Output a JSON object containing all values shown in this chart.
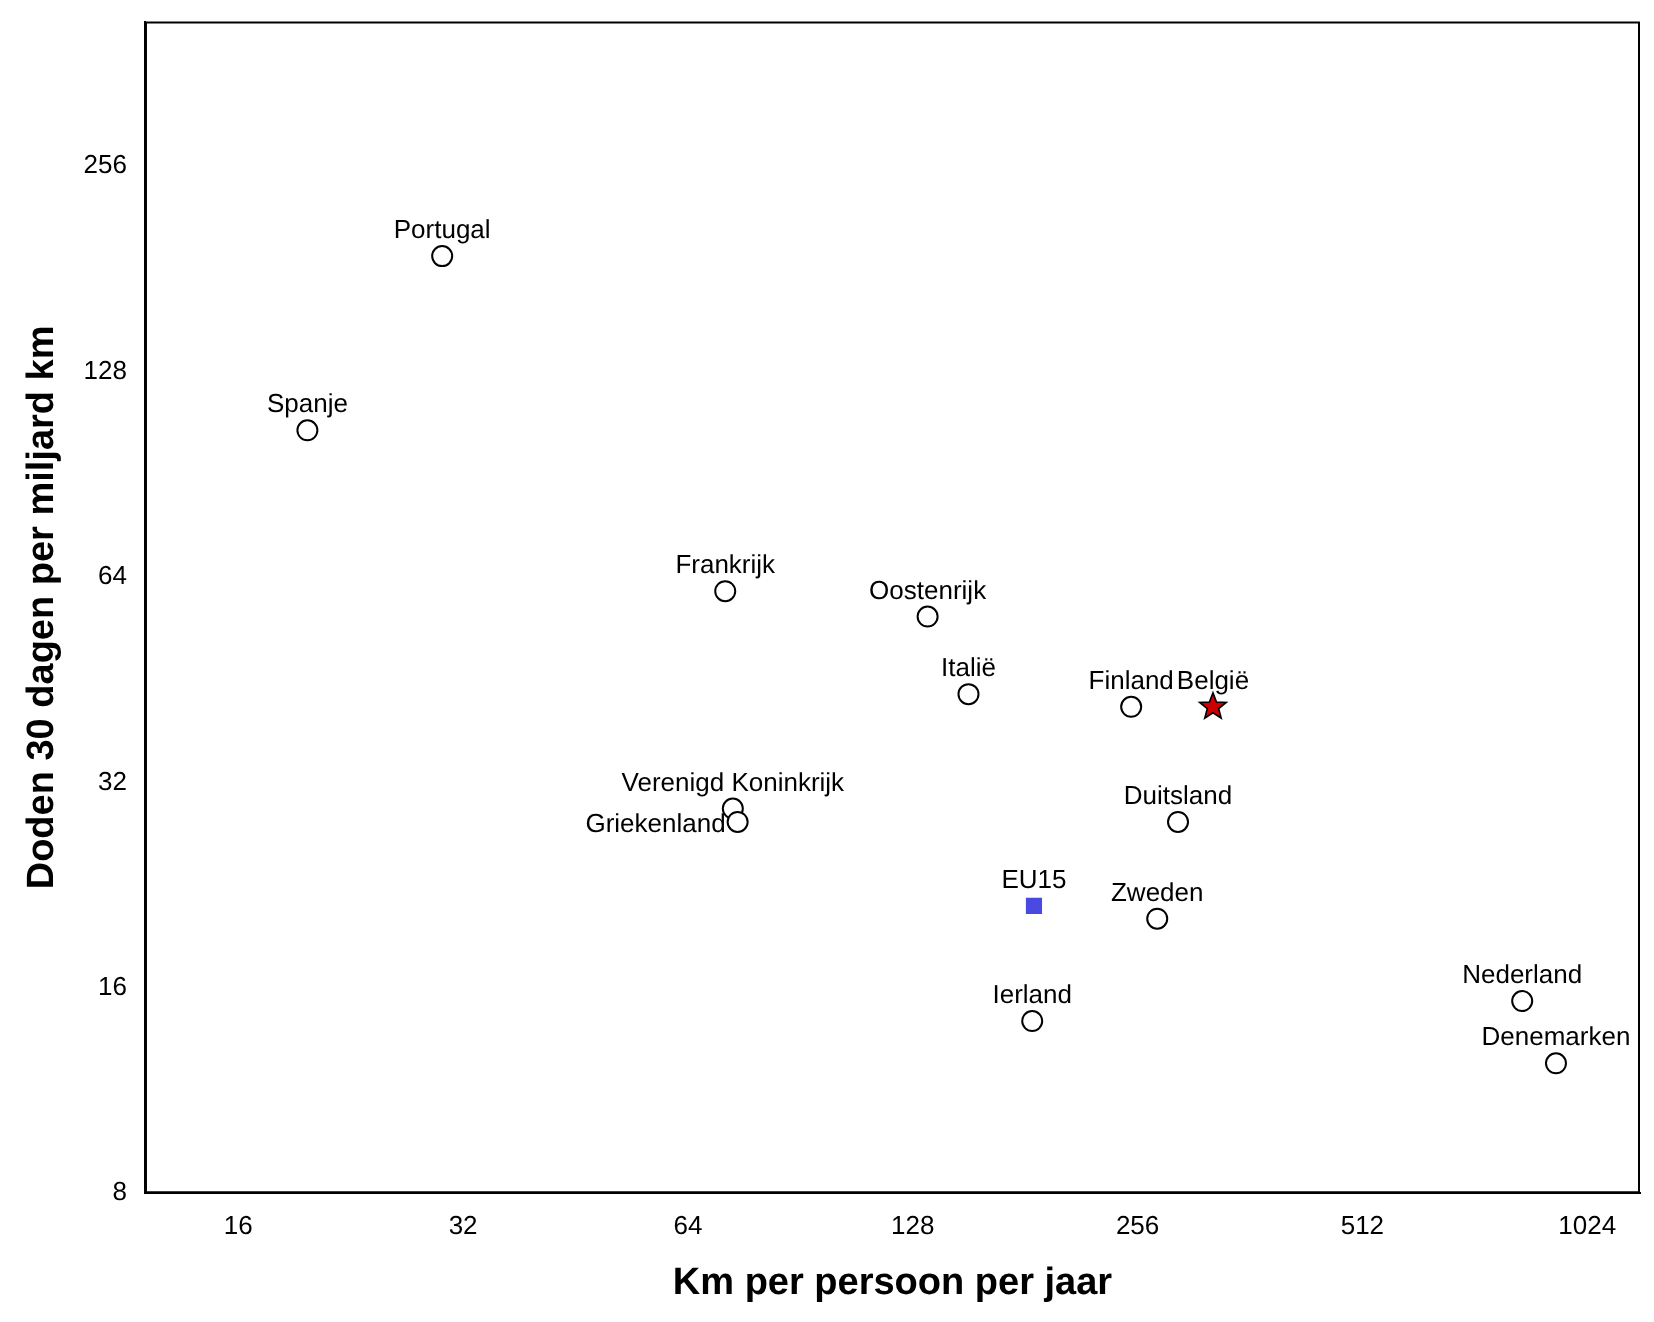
{
  "chart_data": {
    "type": "scatter",
    "xlabel": "Km per persoon per jaar",
    "ylabel": "Doden 30 dagen per miljard km",
    "log": "xy",
    "grid": false,
    "legend": false,
    "xlim": [
      12,
      1205
    ],
    "ylim": [
      8,
      417
    ],
    "xticks": [
      16,
      32,
      64,
      128,
      256,
      512,
      1024
    ],
    "yticks": [
      8,
      16,
      32,
      64,
      128,
      256
    ],
    "series": [
      {
        "color": "#000000",
        "marker": "circle",
        "x": [
          30,
          19.8,
          71.8,
          134,
          152,
          251,
          73.5,
          74.6,
          290,
          272,
          185,
          838,
          930
        ],
        "values": [
          189,
          105,
          61,
          56,
          43.1,
          41.3,
          29.3,
          28,
          28,
          20.2,
          14.3,
          15.3,
          12.4
        ]
      },
      {
        "color": "#4a4ae0",
        "marker": "square",
        "x": [
          186
        ],
        "values": [
          21.1
        ]
      },
      {
        "color": "#cc0000",
        "marker": "star",
        "x": [
          323
        ],
        "values": [
          41.3
        ]
      }
    ],
    "annotations": [
      {
        "text": "Portugal",
        "x": 30,
        "y": 189
      },
      {
        "text": "Spanje",
        "x": 19.8,
        "y": 105
      },
      {
        "text": "Frankrijk",
        "x": 71.8,
        "y": 61
      },
      {
        "text": "Oostenrijk",
        "x": 134,
        "y": 56
      },
      {
        "text": "Italië",
        "x": 152,
        "y": 43.1
      },
      {
        "text": "België",
        "x": 323,
        "y": 41.3
      },
      {
        "text": "Finland",
        "x": 251,
        "y": 41.3
      },
      {
        "text": "Verenigd Koninkrijk",
        "x": 73.5,
        "y": 29.3
      },
      {
        "text": "Griekenland",
        "x": 74.6,
        "y": 28
      },
      {
        "text": "Duitsland",
        "x": 290,
        "y": 28
      },
      {
        "text": "EU15",
        "x": 186,
        "y": 21.1
      },
      {
        "text": "Zweden",
        "x": 272,
        "y": 20.2
      },
      {
        "text": "Ierland",
        "x": 185,
        "y": 14.3
      },
      {
        "text": "Nederland",
        "x": 838,
        "y": 15.3
      },
      {
        "text": "Denemarken",
        "x": 930,
        "y": 12.4
      }
    ]
  }
}
